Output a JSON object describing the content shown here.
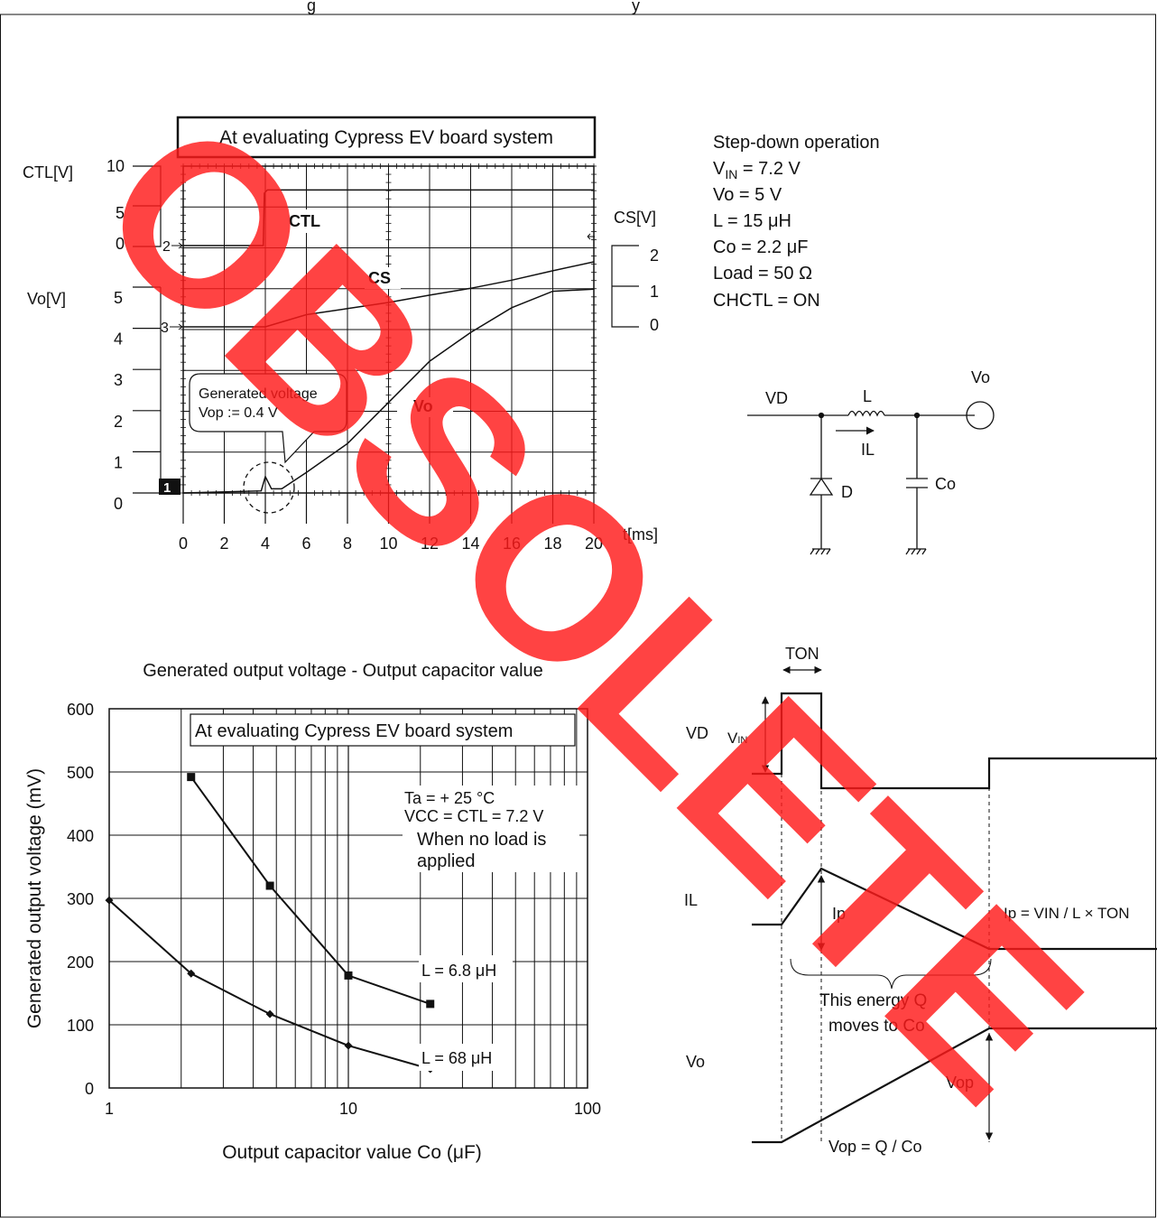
{
  "header_fragment": "g",
  "header_fragment2": "y",
  "watermark": "OBSOLETE",
  "chart_data": [
    {
      "type": "line",
      "title": "At evaluating Cypress EV board system",
      "xlabel": "t[ms]",
      "x_ticks": [
        "0",
        "2",
        "4",
        "6",
        "8",
        "10",
        "12",
        "14",
        "16",
        "18",
        "20"
      ],
      "xlim": [
        0,
        20
      ],
      "channel_markers": [
        "2",
        "3",
        "1"
      ],
      "axes": {
        "ctl": {
          "label": "CTL[V]",
          "ticks": [
            "10",
            "5",
            "0"
          ]
        },
        "vo": {
          "label": "Vo[V]",
          "ticks": [
            "5",
            "4",
            "3",
            "2",
            "1",
            "0"
          ]
        },
        "cs": {
          "label": "CS[V]",
          "ticks": [
            "2",
            "1",
            "0"
          ]
        }
      },
      "series": [
        {
          "name": "CTL",
          "x": [
            0,
            3.9,
            3.95,
            4.1,
            20
          ],
          "y": [
            0,
            0,
            6.6,
            7,
            7
          ],
          "axis": "ctl"
        },
        {
          "name": "CS",
          "x": [
            0,
            4,
            6,
            8,
            10,
            12,
            14,
            16,
            18,
            20
          ],
          "y": [
            0,
            0,
            0.3,
            0.45,
            0.6,
            0.78,
            0.95,
            1.15,
            1.38,
            1.6
          ],
          "axis": "cs"
        },
        {
          "name": "Vo",
          "x": [
            0,
            3.8,
            4.0,
            4.3,
            4.8,
            6,
            8,
            10,
            12,
            14,
            16,
            18,
            20
          ],
          "y": [
            0,
            0.05,
            0.4,
            0.1,
            0.1,
            0.5,
            1.2,
            2.2,
            3.2,
            3.9,
            4.5,
            4.9,
            4.95
          ],
          "axis": "vo"
        }
      ],
      "callout": {
        "line1": "Generated voltage",
        "line2": "Vop := 0.4 V"
      }
    },
    {
      "type": "line",
      "title": "Generated output voltage - Output capacitor value",
      "xlabel": "Output capacitor value Co (μF)",
      "ylabel": "Generated output voltage (mV)",
      "x_scale": "log",
      "xlim": [
        1,
        100
      ],
      "ylim": [
        0,
        600
      ],
      "x_ticks": [
        "1",
        "10",
        "100"
      ],
      "y_ticks": [
        "0",
        "100",
        "200",
        "300",
        "400",
        "500",
        "600"
      ],
      "box_label": "At evaluating Cypress EV board system",
      "conditions": [
        "Ta = + 25 °C",
        "VCC = CTL = 7.2 V",
        "When no load is",
        "applied"
      ],
      "series": [
        {
          "name": "L = 6.8 μH",
          "x": [
            2.2,
            4.7,
            10,
            22
          ],
          "y": [
            492,
            320,
            178,
            133
          ]
        },
        {
          "name": "L = 68 μH",
          "x": [
            1,
            2.2,
            4.7,
            10,
            22
          ],
          "y": [
            297,
            181,
            117,
            67,
            30
          ]
        }
      ]
    }
  ],
  "conditions_top": {
    "line1": "Step-down operation",
    "vin_main": "V",
    "vin_sub": "IN",
    "vin_rest": " = 7.2 V",
    "line3": "Vo = 5 V",
    "line4": "L = 15 μH",
    "line5": "Co = 2.2 μF",
    "line6": "Load = 50 Ω",
    "line7": "CHCTL = ON"
  },
  "circuit": {
    "vd": "VD",
    "l": "L",
    "vo": "Vo",
    "il": "IL",
    "d": "D",
    "co": "Co"
  },
  "timing": {
    "ton": "TON",
    "vd": "VD",
    "vin_main": "V",
    "vin_sub": "IN",
    "il": "IL",
    "ip": "Ip",
    "ip_formula": "Ip = VIN / L × TON",
    "energy1": "This energy Q",
    "energy2": "moves to Co",
    "vo": "Vo",
    "vop": "Vop",
    "vop_formula": "Vop = Q / Co"
  }
}
